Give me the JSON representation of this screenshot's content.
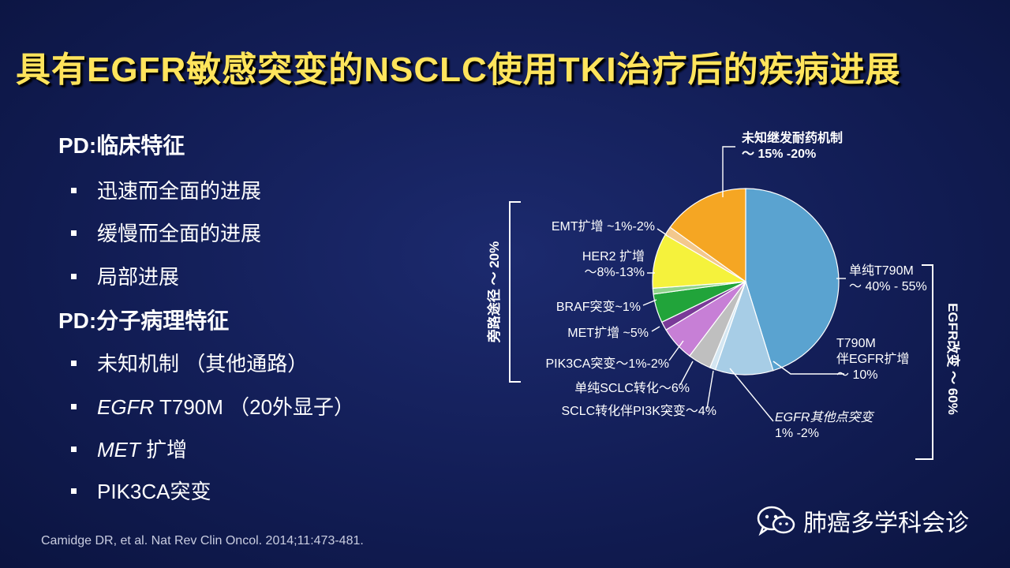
{
  "title": "具有EGFR敏感突变的NSCLC使用TKI治疗后的疾病进展",
  "left": {
    "heading1": "PD:临床特征",
    "clinical": [
      "迅速而全面的进展",
      "缓慢而全面的进展",
      "局部进展"
    ],
    "heading2": "PD:分子病理特征",
    "molecular": [
      {
        "em": "",
        "text": "未知机制 （其他通路）"
      },
      {
        "em": "EGFR",
        "text": " T790M （20外显子）"
      },
      {
        "em": "MET",
        "text": " 扩增"
      },
      {
        "em": "",
        "text": "PIK3CA突变"
      }
    ]
  },
  "citation": "Camidge DR, et al. Nat Rev Clin Oncol. 2014;11:473-481.",
  "watermark": "肺癌多学科会诊",
  "chart_data": {
    "type": "pie",
    "slices": [
      {
        "name": "单纯T790M",
        "value": 45,
        "color": "#5aa3d0",
        "label_lines": [
          "单纯T790M",
          "～ 40% - 55%"
        ]
      },
      {
        "name": "T790M伴EGFR扩增",
        "value": 10,
        "color": "#a7cde6",
        "label_lines": [
          "T790M",
          "伴EGFR扩增",
          "～ 10%"
        ]
      },
      {
        "name": "EGFR其他点突变",
        "value": 1,
        "color": "#d4e6f1",
        "label_lines": [
          "EGFR其他点突变",
          "1% -2%"
        ]
      },
      {
        "name": "SCLC转化伴PI3K突变",
        "value": 4,
        "color": "#bfbfbf",
        "label_lines": [
          "SCLC转化伴PI3K突变～4%"
        ]
      },
      {
        "name": "单纯SCLC转化",
        "value": 6,
        "color": "#c77fd6",
        "label_lines": [
          "单纯SCLC转化～6%"
        ]
      },
      {
        "name": "PIK3CA突变",
        "value": 1.5,
        "color": "#7a3a98",
        "label_lines": [
          "PIK3CA突变～1%-2%"
        ]
      },
      {
        "name": "MET扩增",
        "value": 5,
        "color": "#21a43a",
        "label_lines": [
          "MET扩增 ~5%"
        ]
      },
      {
        "name": "BRAF突变",
        "value": 1,
        "color": "#8fd48a",
        "label_lines": [
          "BRAF突变~1%"
        ]
      },
      {
        "name": "HER2扩增",
        "value": 9.5,
        "color": "#f5f23c",
        "label_lines": [
          "HER2 扩增",
          "～8%-13%"
        ]
      },
      {
        "name": "EMT扩增",
        "value": 1.5,
        "color": "#f3c88d",
        "label_lines": [
          "EMT扩增 ~1%-2%"
        ]
      },
      {
        "name": "未知继发耐药机制",
        "value": 15,
        "color": "#f5a623",
        "label_lines": [
          "未知继发耐药机制",
          "～ 15% -20%"
        ]
      }
    ],
    "groups": [
      {
        "label": "旁路途径 ～ 20%"
      },
      {
        "label": "EGFR改变 ～ 60%"
      }
    ]
  }
}
